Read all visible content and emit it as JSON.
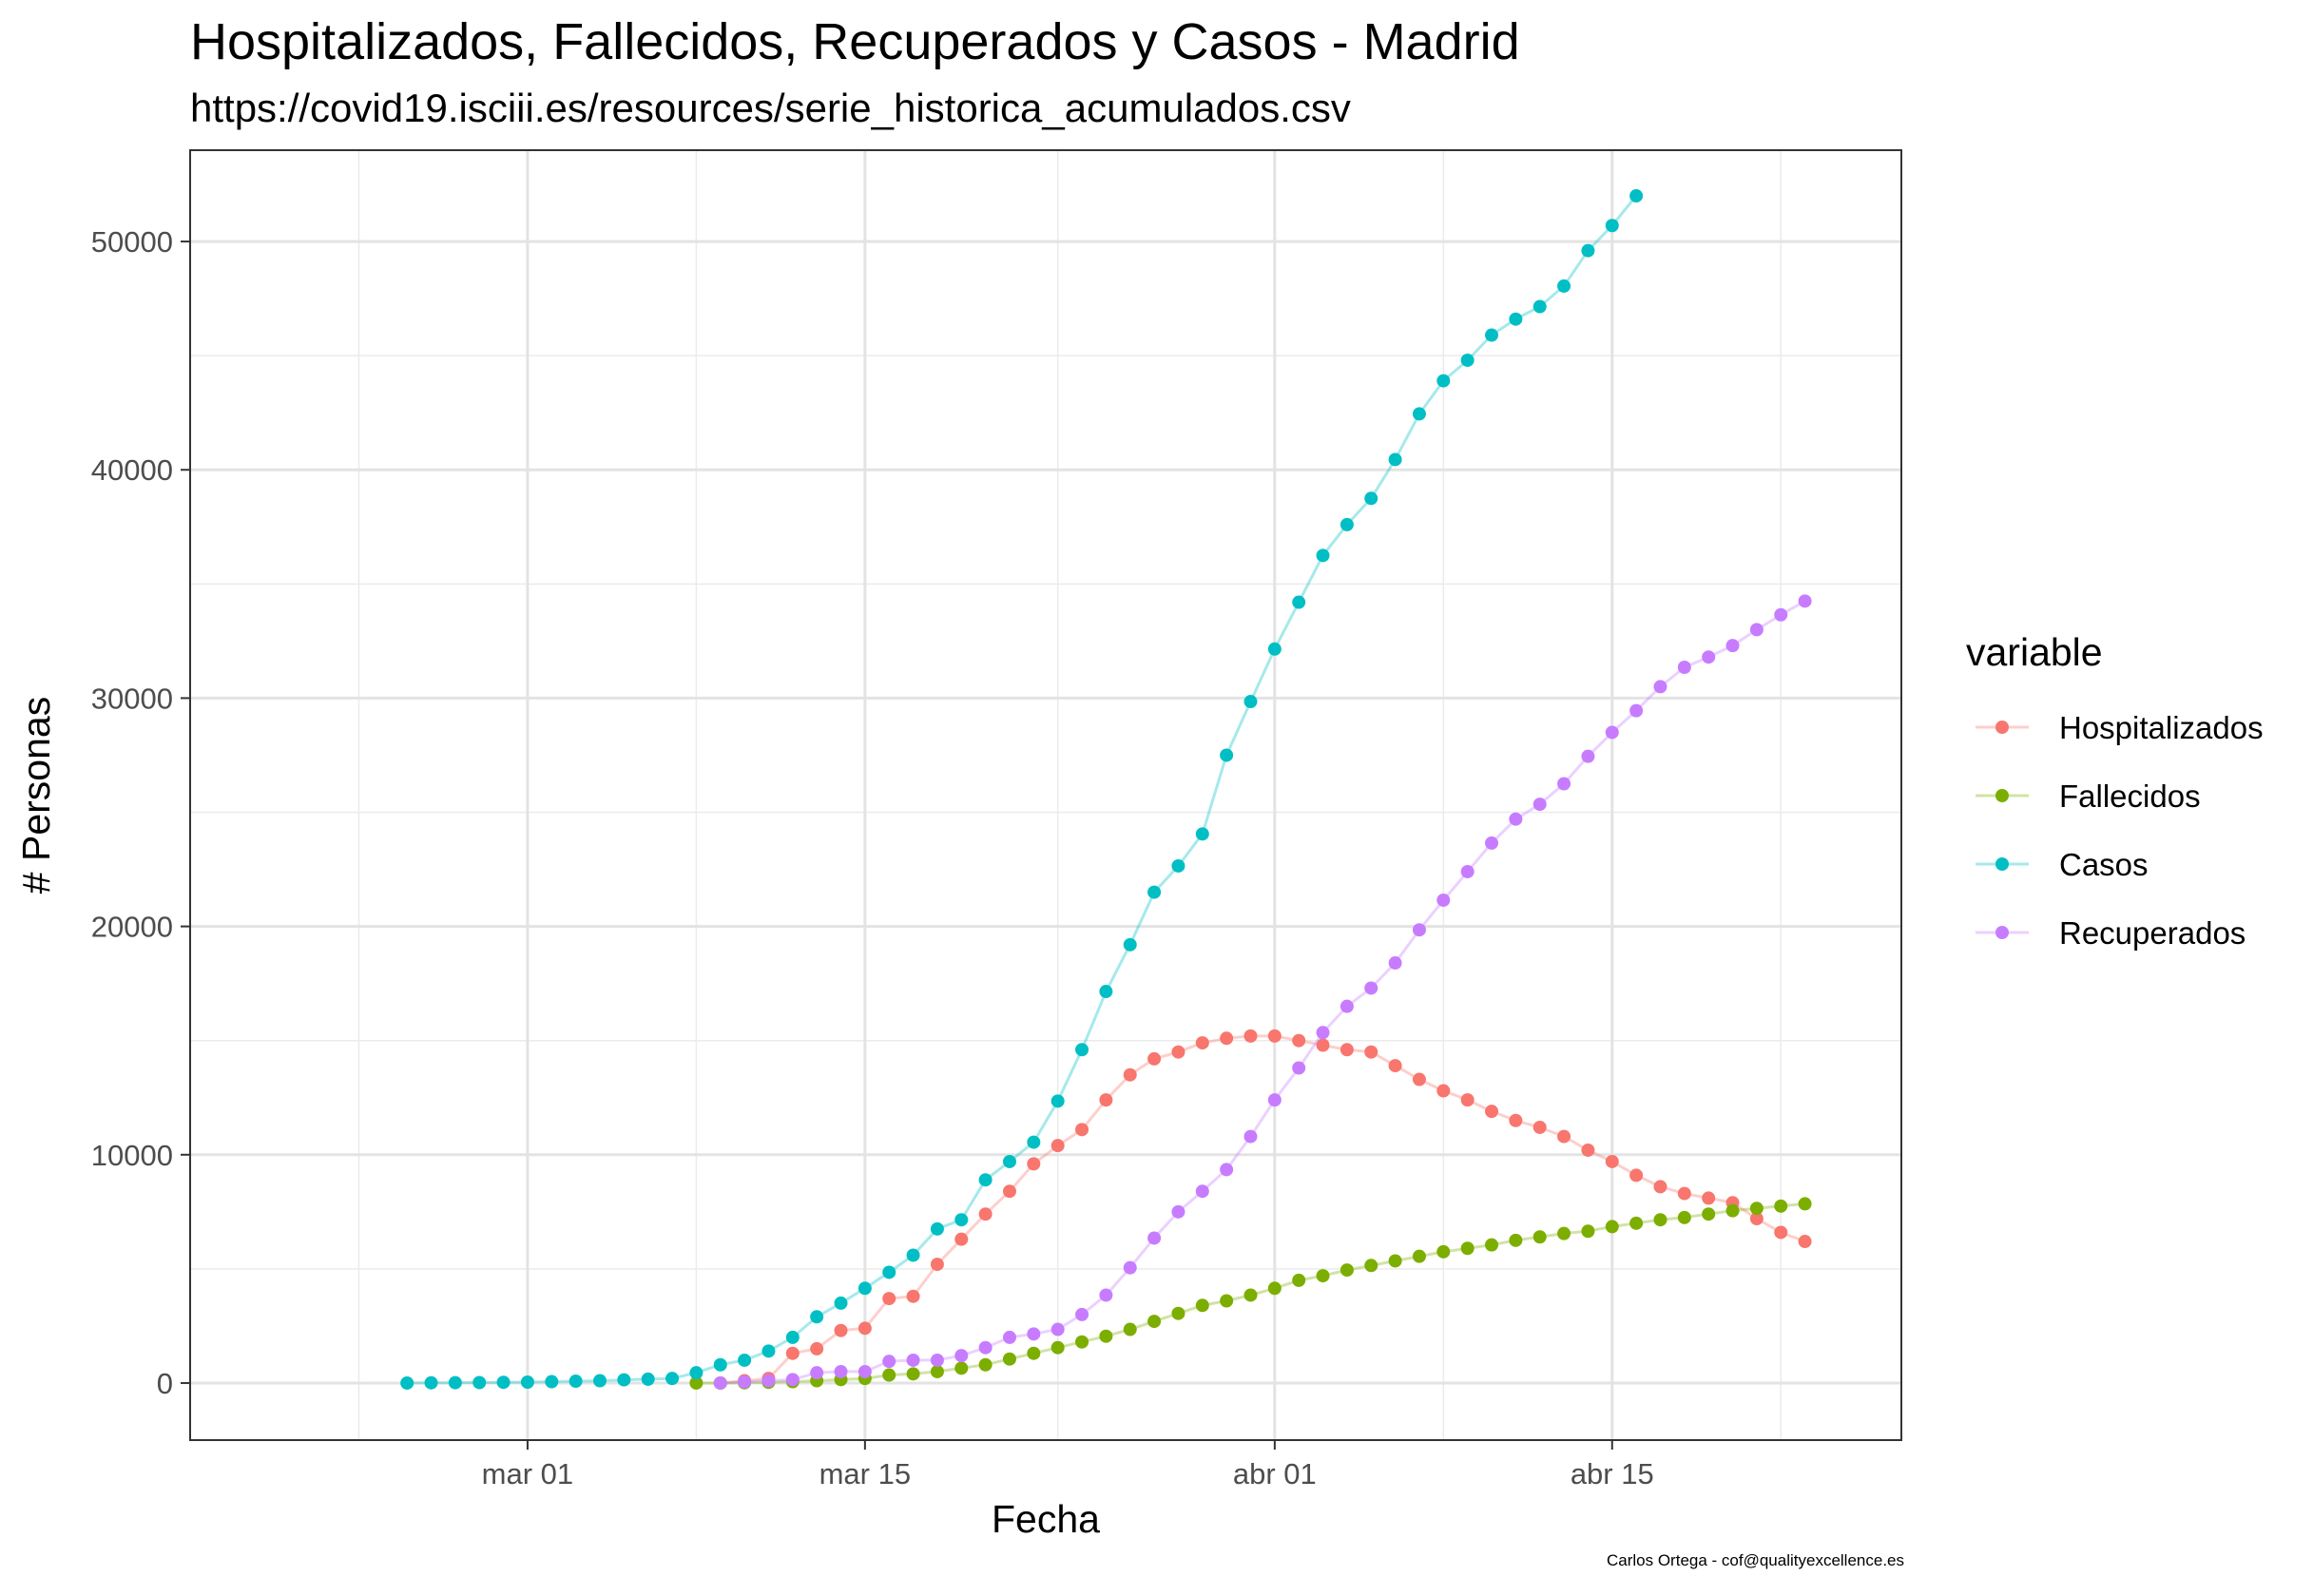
{
  "title": "Hospitalizados, Fallecidos, Recuperados y Casos - Madrid",
  "subtitle": "https://covid19.isciii.es/resources/serie_historica_acumulados.csv",
  "caption": "Carlos Ortega - cof@qualityexcellence.es",
  "chart_data": {
    "type": "line",
    "xlabel": "Fecha",
    "ylabel": "# Personas",
    "x_axis": {
      "kind": "date",
      "range": [
        "2020-02-16",
        "2020-04-27"
      ],
      "ticks": [
        {
          "date": "2020-03-01",
          "label": "mar 01"
        },
        {
          "date": "2020-03-15",
          "label": "mar 15"
        },
        {
          "date": "2020-04-01",
          "label": "abr 01"
        },
        {
          "date": "2020-04-15",
          "label": "abr 15"
        }
      ]
    },
    "y_axis": {
      "range": [
        -2500,
        54000
      ],
      "ticks": [
        0,
        10000,
        20000,
        30000,
        40000,
        50000
      ],
      "tick_labels": [
        "0",
        "10000",
        "20000",
        "30000",
        "40000",
        "50000"
      ]
    },
    "grid": true,
    "legend": {
      "title": "variable",
      "position": "right"
    },
    "series": [
      {
        "name": "Hospitalizados",
        "color": "#F8766D",
        "dates": [
          "2020-03-09",
          "2020-03-10",
          "2020-03-11",
          "2020-03-12",
          "2020-03-13",
          "2020-03-14",
          "2020-03-15",
          "2020-03-16",
          "2020-03-17",
          "2020-03-18",
          "2020-03-19",
          "2020-03-20",
          "2020-03-21",
          "2020-03-22",
          "2020-03-23",
          "2020-03-24",
          "2020-03-25",
          "2020-03-26",
          "2020-03-27",
          "2020-03-28",
          "2020-03-29",
          "2020-03-30",
          "2020-03-31",
          "2020-04-01",
          "2020-04-02",
          "2020-04-03",
          "2020-04-04",
          "2020-04-05",
          "2020-04-06",
          "2020-04-07",
          "2020-04-08",
          "2020-04-09",
          "2020-04-10",
          "2020-04-11",
          "2020-04-12",
          "2020-04-13",
          "2020-04-14",
          "2020-04-15",
          "2020-04-16",
          "2020-04-17",
          "2020-04-18",
          "2020-04-19",
          "2020-04-20",
          "2020-04-21",
          "2020-04-22",
          "2020-04-23"
        ],
        "values": [
          0,
          100,
          200,
          1300,
          1500,
          2300,
          2400,
          3700,
          3800,
          5200,
          6300,
          7400,
          8400,
          9600,
          10400,
          11100,
          12400,
          13500,
          14200,
          14500,
          14900,
          15100,
          15200,
          15200,
          15000,
          14800,
          14600,
          14500,
          13900,
          13300,
          12800,
          12400,
          11900,
          11500,
          11200,
          10800,
          10200,
          9700,
          9100,
          8600,
          8300,
          8100,
          7900,
          7200,
          6600,
          6200
        ]
      },
      {
        "name": "Fallecidos",
        "color": "#7CAE00",
        "dates": [
          "2020-03-08",
          "2020-03-09",
          "2020-03-10",
          "2020-03-11",
          "2020-03-12",
          "2020-03-13",
          "2020-03-14",
          "2020-03-15",
          "2020-03-16",
          "2020-03-17",
          "2020-03-18",
          "2020-03-19",
          "2020-03-20",
          "2020-03-21",
          "2020-03-22",
          "2020-03-23",
          "2020-03-24",
          "2020-03-25",
          "2020-03-26",
          "2020-03-27",
          "2020-03-28",
          "2020-03-29",
          "2020-03-30",
          "2020-03-31",
          "2020-04-01",
          "2020-04-02",
          "2020-04-03",
          "2020-04-04",
          "2020-04-05",
          "2020-04-06",
          "2020-04-07",
          "2020-04-08",
          "2020-04-09",
          "2020-04-10",
          "2020-04-11",
          "2020-04-12",
          "2020-04-13",
          "2020-04-14",
          "2020-04-15",
          "2020-04-16",
          "2020-04-17",
          "2020-04-18",
          "2020-04-19",
          "2020-04-20",
          "2020-04-21",
          "2020-04-22",
          "2020-04-23"
        ],
        "values": [
          0,
          0,
          10,
          30,
          60,
          100,
          150,
          200,
          350,
          400,
          500,
          650,
          800,
          1050,
          1300,
          1550,
          1800,
          2050,
          2350,
          2700,
          3050,
          3400,
          3600,
          3850,
          4150,
          4500,
          4700,
          4950,
          5150,
          5350,
          5550,
          5750,
          5900,
          6050,
          6250,
          6400,
          6550,
          6650,
          6850,
          7000,
          7150,
          7250,
          7400,
          7550,
          7650,
          7750,
          7850
        ]
      },
      {
        "name": "Casos",
        "color": "#00BFC4",
        "dates": [
          "2020-02-25",
          "2020-02-26",
          "2020-02-27",
          "2020-02-28",
          "2020-02-29",
          "2020-03-01",
          "2020-03-02",
          "2020-03-03",
          "2020-03-04",
          "2020-03-05",
          "2020-03-06",
          "2020-03-07",
          "2020-03-08",
          "2020-03-09",
          "2020-03-10",
          "2020-03-11",
          "2020-03-12",
          "2020-03-13",
          "2020-03-14",
          "2020-03-15",
          "2020-03-16",
          "2020-03-17",
          "2020-03-18",
          "2020-03-19",
          "2020-03-20",
          "2020-03-21",
          "2020-03-22",
          "2020-03-23",
          "2020-03-24",
          "2020-03-25",
          "2020-03-26",
          "2020-03-27",
          "2020-03-28",
          "2020-03-29",
          "2020-03-30",
          "2020-03-31",
          "2020-04-01",
          "2020-04-02",
          "2020-04-03",
          "2020-04-04",
          "2020-04-05",
          "2020-04-06",
          "2020-04-07",
          "2020-04-08",
          "2020-04-09",
          "2020-04-10",
          "2020-04-11",
          "2020-04-12",
          "2020-04-13",
          "2020-04-14",
          "2020-04-15",
          "2020-04-16"
        ],
        "values": [
          0,
          10,
          15,
          20,
          30,
          40,
          60,
          80,
          100,
          140,
          170,
          200,
          450,
          800,
          1000,
          1400,
          2000,
          2900,
          3500,
          4150,
          4850,
          5600,
          6750,
          7150,
          8900,
          9700,
          10550,
          12350,
          14600,
          17150,
          19200,
          21500,
          22650,
          24050,
          27500,
          29850,
          32150,
          34200,
          36250,
          37600,
          38750,
          40450,
          42450,
          43900,
          44800,
          45900,
          46600,
          47150,
          48050,
          49600,
          50700,
          52000
        ]
      },
      {
        "name": "Recuperados",
        "color": "#C77CFF",
        "dates": [
          "2020-03-09",
          "2020-03-10",
          "2020-03-11",
          "2020-03-12",
          "2020-03-13",
          "2020-03-14",
          "2020-03-15",
          "2020-03-16",
          "2020-03-17",
          "2020-03-18",
          "2020-03-19",
          "2020-03-20",
          "2020-03-21",
          "2020-03-22",
          "2020-03-23",
          "2020-03-24",
          "2020-03-25",
          "2020-03-26",
          "2020-03-27",
          "2020-03-28",
          "2020-03-29",
          "2020-03-30",
          "2020-03-31",
          "2020-04-01",
          "2020-04-02",
          "2020-04-03",
          "2020-04-04",
          "2020-04-05",
          "2020-04-06",
          "2020-04-07",
          "2020-04-08",
          "2020-04-09",
          "2020-04-10",
          "2020-04-11",
          "2020-04-12",
          "2020-04-13",
          "2020-04-14",
          "2020-04-15",
          "2020-04-16",
          "2020-04-17",
          "2020-04-18",
          "2020-04-19",
          "2020-04-20",
          "2020-04-21",
          "2020-04-22",
          "2020-04-23"
        ],
        "values": [
          0,
          50,
          100,
          150,
          450,
          500,
          500,
          950,
          1000,
          1000,
          1200,
          1550,
          2000,
          2150,
          2350,
          3000,
          3850,
          5050,
          6350,
          7500,
          8400,
          9350,
          10800,
          12400,
          13800,
          15350,
          16500,
          17300,
          18400,
          19850,
          21150,
          22400,
          23650,
          24700,
          25350,
          26250,
          27450,
          28500,
          29450,
          30500,
          31350,
          31800,
          32300,
          33000,
          33650,
          34250
        ]
      }
    ]
  }
}
